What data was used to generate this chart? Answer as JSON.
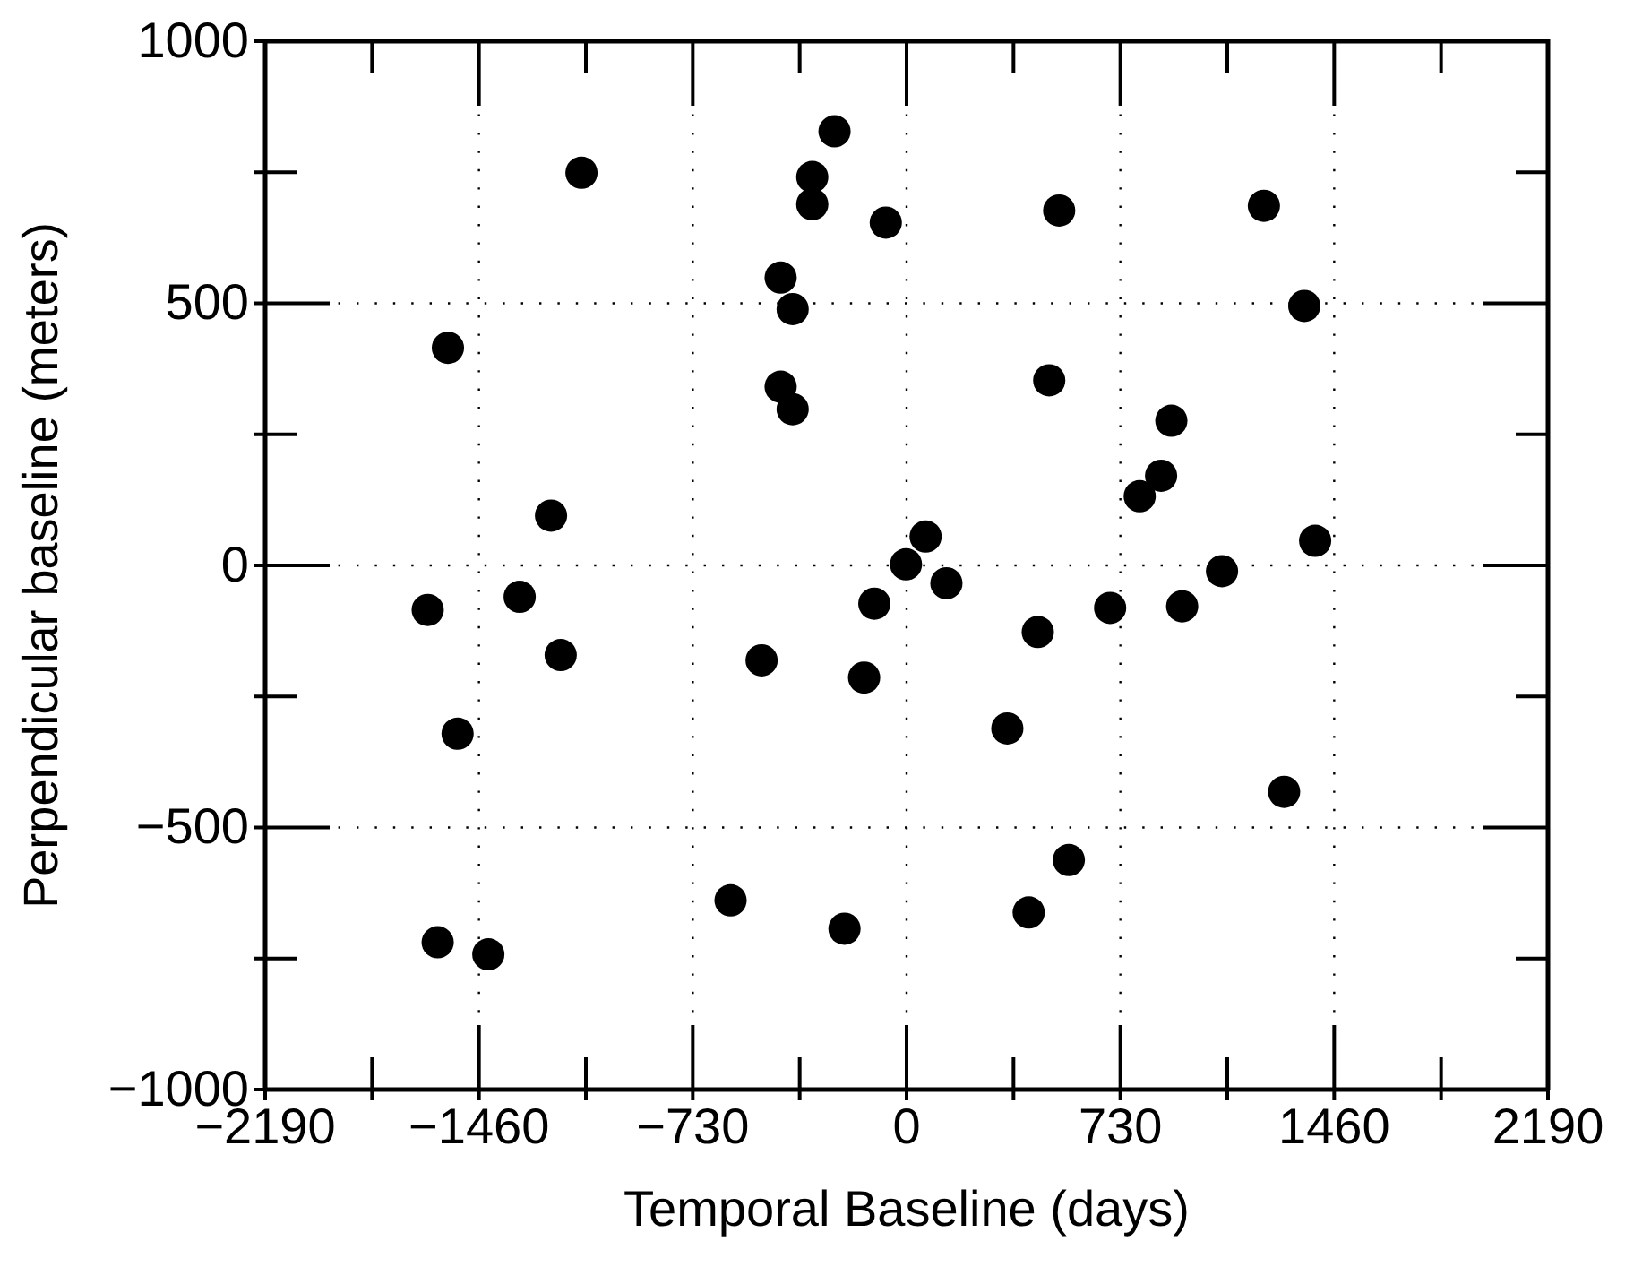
{
  "chart_data": {
    "type": "scatter",
    "xlabel": "Temporal Baseline (days)",
    "ylabel": "Perpendicular baseline (meters)",
    "x": [
      -246,
      -322,
      -322,
      -71,
      -430,
      -389,
      -430,
      -389,
      -1110,
      -1566,
      -1214,
      65,
      -2,
      521,
      1220,
      1358,
      487,
      904,
      869,
      796,
      1395,
      1077,
      136,
      -1635,
      -1321,
      -1181,
      -1533,
      -495,
      -145,
      -110,
      -601,
      -212,
      -1601,
      -1428,
      448,
      695,
      941,
      344,
      1289,
      554,
      417
    ],
    "series": [
      {
        "color": "#000000",
        "values": [
          828,
          741,
          689,
          654,
          549,
          489,
          341,
          298,
          749,
          415,
          95,
          55,
          2,
          677,
          686,
          495,
          353,
          276,
          171,
          132,
          47,
          -11,
          -34,
          -85,
          -60,
          -171,
          -321,
          -181,
          -214,
          -73,
          -639,
          -693,
          -719,
          -742,
          -127,
          -81,
          -78,
          -311,
          -432,
          -562,
          -662
        ]
      }
    ],
    "xlim": [
      -2190,
      2190
    ],
    "xticks": [
      -2190,
      {
        "value": -1825,
        "label": null
      },
      -1460,
      {
        "value": -1095,
        "label": null
      },
      -730,
      {
        "value": -365,
        "label": null
      },
      0,
      {
        "value": 365,
        "label": null
      },
      730,
      {
        "value": 1095,
        "label": null
      },
      1460,
      {
        "value": 1825,
        "label": null
      },
      2190
    ],
    "ylim": [
      -1000,
      1000
    ],
    "yticks": [
      -1000,
      {
        "value": -750,
        "label": null
      },
      -500,
      {
        "value": -250,
        "label": null
      },
      0,
      {
        "value": 250,
        "label": null
      },
      500,
      {
        "value": 750,
        "label": null
      },
      1000
    ],
    "grid": true,
    "marker": "circle"
  }
}
